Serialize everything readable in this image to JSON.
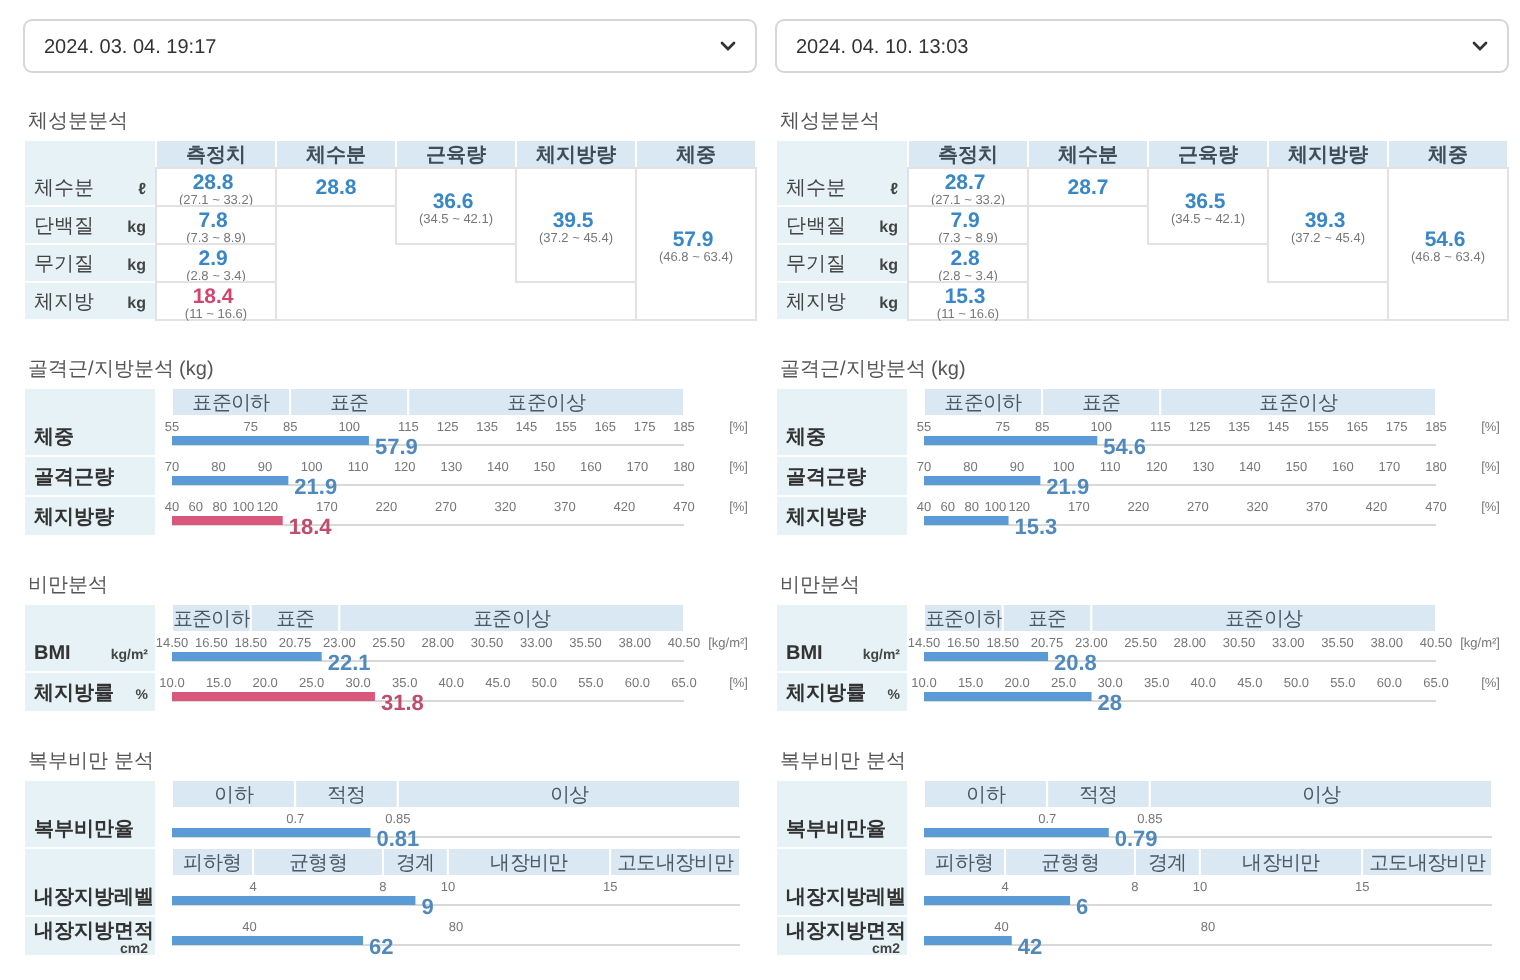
{
  "chart_data": [
    {
      "type": "other",
      "title": "2024. 03. 04. 19:17"
    },
    {
      "type": "other",
      "title": "체성분분석",
      "categories": [
        "측정치",
        "체수분",
        "근육량",
        "체지방량",
        "체중"
      ],
      "y_categories": [
        "체수분",
        "단백질",
        "무기질",
        "체지방"
      ],
      "y2_categories": [
        "ℓ",
        "kg",
        "kg",
        "kg"
      ],
      "cell_labels": [
        [
          "28.8\n(27.1 ~ 33.2)",
          "28.8",
          null,
          null,
          null
        ],
        [
          "7.8\n(7.3 ~ 8.9)",
          null,
          "36.6\n(34.5 ~ 42.1)",
          null,
          null
        ],
        [
          "2.9\n(2.8 ~ 3.4)",
          null,
          null,
          "39.5\n(37.2 ~ 45.4)",
          null
        ],
        [
          "18.4\n(11 ~ 16.6)",
          null,
          null,
          null,
          "57.9\n(46.8 ~ 63.4)"
        ]
      ]
    },
    {
      "type": "bar",
      "orientation": "horizontal",
      "title": "골격근/지방분석 (kg)",
      "categories": [
        "체중"
      ],
      "values": [
        105
      ],
      "annotations": [
        {
          "text": "57.9",
          "x": 105
        }
      ],
      "color": "#5b9bd5",
      "xlim": [
        55,
        185
      ],
      "xticks": [
        55,
        75,
        85,
        100,
        115,
        125,
        135,
        145,
        155,
        165,
        175,
        185
      ],
      "xlabel": "[%]",
      "bands": [
        {
          "axis": "x",
          "from": 55,
          "to": 85,
          "label": "표준이하"
        },
        {
          "axis": "x",
          "from": 85,
          "to": 115,
          "label": "표준"
        },
        {
          "axis": "x",
          "from": 115,
          "to": 185,
          "label": "표준이상"
        }
      ]
    },
    {
      "type": "bar",
      "orientation": "horizontal",
      "categories": [
        "골격근량"
      ],
      "values": [
        95
      ],
      "annotations": [
        {
          "text": "21.9",
          "x": 95
        }
      ],
      "color": "#5b9bd5",
      "xlim": [
        70,
        180
      ],
      "xticks": [
        70,
        80,
        90,
        100,
        110,
        120,
        130,
        140,
        150,
        160,
        170,
        180
      ],
      "xlabel": "[%]"
    },
    {
      "type": "bar",
      "orientation": "horizontal",
      "categories": [
        "체지방량"
      ],
      "values": [
        133
      ],
      "annotations": [
        {
          "text": "18.4",
          "x": 133
        }
      ],
      "color": "#d9577a",
      "xlim": [
        40,
        470
      ],
      "xticks": [
        40,
        60,
        80,
        100,
        120,
        170,
        220,
        270,
        320,
        370,
        420,
        470
      ],
      "xlabel": "[%]"
    },
    {
      "type": "bar",
      "orientation": "horizontal",
      "title": "비만분석",
      "categories": [
        "BMI"
      ],
      "ylabel": "kg/m²",
      "values": [
        22.1
      ],
      "data_labels": true,
      "color": "#5b9bd5",
      "xlim": [
        14.5,
        40.5
      ],
      "xticks": [
        {
          "value": 14.5,
          "label": "14.50"
        },
        {
          "value": 16.5,
          "label": "16.50"
        },
        {
          "value": 18.5,
          "label": "18.50"
        },
        {
          "value": 20.75,
          "label": "20.75"
        },
        {
          "value": 23,
          "label": "23.00"
        },
        {
          "value": 25.5,
          "label": "25.50"
        },
        {
          "value": 28,
          "label": "28.00"
        },
        {
          "value": 30.5,
          "label": "30.50"
        },
        {
          "value": 33,
          "label": "33.00"
        },
        {
          "value": 35.5,
          "label": "35.50"
        },
        {
          "value": 38,
          "label": "38.00"
        },
        {
          "value": 40.5,
          "label": "40.50"
        }
      ],
      "xlabel": "[kg/m²]",
      "bands": [
        {
          "axis": "x",
          "from": 14.5,
          "to": 18.5,
          "label": "표준이하"
        },
        {
          "axis": "x",
          "from": 18.5,
          "to": 23,
          "label": "표준"
        },
        {
          "axis": "x",
          "from": 23,
          "to": 40.5,
          "label": "표준이상"
        }
      ]
    },
    {
      "type": "bar",
      "orientation": "horizontal",
      "categories": [
        "체지방률"
      ],
      "ylabel": "%",
      "values": [
        31.8
      ],
      "data_labels": true,
      "color": "#d9577a",
      "xlim": [
        10,
        65
      ],
      "xticks": [
        {
          "value": 10,
          "label": "10.0"
        },
        {
          "value": 15,
          "label": "15.0"
        },
        {
          "value": 20,
          "label": "20.0"
        },
        {
          "value": 25,
          "label": "25.0"
        },
        {
          "value": 30,
          "label": "30.0"
        },
        {
          "value": 35,
          "label": "35.0"
        },
        {
          "value": 40,
          "label": "40.0"
        },
        {
          "value": 45,
          "label": "45.0"
        },
        {
          "value": 50,
          "label": "50.0"
        },
        {
          "value": 55,
          "label": "55.0"
        },
        {
          "value": 60,
          "label": "60.0"
        },
        {
          "value": 65,
          "label": "65.0"
        }
      ],
      "xlabel": "[%]"
    },
    {
      "type": "bar",
      "orientation": "horizontal",
      "title": "복부비만 분석",
      "categories": [
        "복부비만율"
      ],
      "values": [
        0.81
      ],
      "data_labels": true,
      "color": "#5b9bd5",
      "xlim": [
        0.52,
        1.35
      ],
      "xticks": [
        0.7,
        0.85
      ],
      "bands": [
        {
          "axis": "x",
          "from": 0.52,
          "to": 0.7,
          "label": "이하"
        },
        {
          "axis": "x",
          "from": 0.7,
          "to": 0.85,
          "label": "적정"
        },
        {
          "axis": "x",
          "from": 0.85,
          "to": 1.35,
          "label": "이상"
        }
      ]
    },
    {
      "type": "bar",
      "orientation": "horizontal",
      "categories": [
        "내장지방레벨"
      ],
      "values": [
        9
      ],
      "data_labels": true,
      "color": "#5b9bd5",
      "xlim": [
        1.5,
        19
      ],
      "xticks": [
        4,
        8,
        10,
        15
      ],
      "bands": [
        {
          "axis": "x",
          "from": 1.5,
          "to": 4,
          "label": "피하형"
        },
        {
          "axis": "x",
          "from": 4,
          "to": 8,
          "label": "균형형"
        },
        {
          "axis": "x",
          "from": 8,
          "to": 10,
          "label": "경계"
        },
        {
          "axis": "x",
          "from": 10,
          "to": 15,
          "label": "내장비만"
        },
        {
          "axis": "x",
          "from": 15,
          "to": 19,
          "label": "고도내장비만"
        }
      ]
    },
    {
      "type": "bar",
      "orientation": "horizontal",
      "categories": [
        "내장지방면적"
      ],
      "ylabel": "cm2",
      "values": [
        62
      ],
      "data_labels": true,
      "color": "#5b9bd5",
      "xlim": [
        25,
        135
      ],
      "xticks": [
        40,
        80
      ]
    },
    {
      "type": "other",
      "title": "2024. 04. 10. 13:03"
    },
    {
      "type": "other",
      "title": "체성분분석",
      "categories": [
        "측정치",
        "체수분",
        "근육량",
        "체지방량",
        "체중"
      ],
      "y_categories": [
        "체수분",
        "단백질",
        "무기질",
        "체지방"
      ],
      "y2_categories": [
        "ℓ",
        "kg",
        "kg",
        "kg"
      ],
      "cell_labels": [
        [
          "28.7\n(27.1 ~ 33.2)",
          "28.7",
          null,
          null,
          null
        ],
        [
          "7.9\n(7.3 ~ 8.9)",
          null,
          "36.5\n(34.5 ~ 42.1)",
          null,
          null
        ],
        [
          "2.8\n(2.8 ~ 3.4)",
          null,
          null,
          "39.3\n(37.2 ~ 45.4)",
          null
        ],
        [
          "15.3\n(11 ~ 16.6)",
          null,
          null,
          null,
          "54.6\n(46.8 ~ 63.4)"
        ]
      ]
    },
    {
      "type": "bar",
      "orientation": "horizontal",
      "title": "골격근/지방분석 (kg)",
      "categories": [
        "체중"
      ],
      "values": [
        99
      ],
      "annotations": [
        {
          "text": "54.6",
          "x": 99
        }
      ],
      "color": "#5b9bd5",
      "xlim": [
        55,
        185
      ],
      "xticks": [
        55,
        75,
        85,
        100,
        115,
        125,
        135,
        145,
        155,
        165,
        175,
        185
      ],
      "xlabel": "[%]",
      "bands": [
        {
          "axis": "x",
          "from": 55,
          "to": 85,
          "label": "표준이하"
        },
        {
          "axis": "x",
          "from": 85,
          "to": 115,
          "label": "표준"
        },
        {
          "axis": "x",
          "from": 115,
          "to": 185,
          "label": "표준이상"
        }
      ]
    },
    {
      "type": "bar",
      "orientation": "horizontal",
      "categories": [
        "골격근량"
      ],
      "values": [
        95
      ],
      "annotations": [
        {
          "text": "21.9",
          "x": 95
        }
      ],
      "color": "#5b9bd5",
      "xlim": [
        70,
        180
      ],
      "xticks": [
        70,
        80,
        90,
        100,
        110,
        120,
        130,
        140,
        150,
        160,
        170,
        180
      ],
      "xlabel": "[%]"
    },
    {
      "type": "bar",
      "orientation": "horizontal",
      "categories": [
        "체지방량"
      ],
      "values": [
        111
      ],
      "annotations": [
        {
          "text": "15.3",
          "x": 111
        }
      ],
      "color": "#5b9bd5",
      "xlim": [
        40,
        470
      ],
      "xticks": [
        40,
        60,
        80,
        100,
        120,
        170,
        220,
        270,
        320,
        370,
        420,
        470
      ],
      "xlabel": "[%]"
    },
    {
      "type": "bar",
      "orientation": "horizontal",
      "title": "비만분석",
      "categories": [
        "BMI"
      ],
      "ylabel": "kg/m²",
      "values": [
        20.8
      ],
      "data_labels": true,
      "color": "#5b9bd5",
      "xlim": [
        14.5,
        40.5
      ],
      "xticks": [
        {
          "value": 14.5,
          "label": "14.50"
        },
        {
          "value": 16.5,
          "label": "16.50"
        },
        {
          "value": 18.5,
          "label": "18.50"
        },
        {
          "value": 20.75,
          "label": "20.75"
        },
        {
          "value": 23,
          "label": "23.00"
        },
        {
          "value": 25.5,
          "label": "25.50"
        },
        {
          "value": 28,
          "label": "28.00"
        },
        {
          "value": 30.5,
          "label": "30.50"
        },
        {
          "value": 33,
          "label": "33.00"
        },
        {
          "value": 35.5,
          "label": "35.50"
        },
        {
          "value": 38,
          "label": "38.00"
        },
        {
          "value": 40.5,
          "label": "40.50"
        }
      ],
      "xlabel": "[kg/m²]",
      "bands": [
        {
          "axis": "x",
          "from": 14.5,
          "to": 18.5,
          "label": "표준이하"
        },
        {
          "axis": "x",
          "from": 18.5,
          "to": 23,
          "label": "표준"
        },
        {
          "axis": "x",
          "from": 23,
          "to": 40.5,
          "label": "표준이상"
        }
      ]
    },
    {
      "type": "bar",
      "orientation": "horizontal",
      "categories": [
        "체지방률"
      ],
      "ylabel": "%",
      "values": [
        28
      ],
      "data_labels": true,
      "color": "#5b9bd5",
      "xlim": [
        10,
        65
      ],
      "xticks": [
        {
          "value": 10,
          "label": "10.0"
        },
        {
          "value": 15,
          "label": "15.0"
        },
        {
          "value": 20,
          "label": "20.0"
        },
        {
          "value": 25,
          "label": "25.0"
        },
        {
          "value": 30,
          "label": "30.0"
        },
        {
          "value": 35,
          "label": "35.0"
        },
        {
          "value": 40,
          "label": "40.0"
        },
        {
          "value": 45,
          "label": "45.0"
        },
        {
          "value": 50,
          "label": "50.0"
        },
        {
          "value": 55,
          "label": "55.0"
        },
        {
          "value": 60,
          "label": "60.0"
        },
        {
          "value": 65,
          "label": "65.0"
        }
      ],
      "xlabel": "[%]"
    },
    {
      "type": "bar",
      "orientation": "horizontal",
      "title": "복부비만 분석",
      "categories": [
        "복부비만율"
      ],
      "values": [
        0.79
      ],
      "data_labels": true,
      "color": "#5b9bd5",
      "xlim": [
        0.52,
        1.35
      ],
      "xticks": [
        0.7,
        0.85
      ],
      "bands": [
        {
          "axis": "x",
          "from": 0.52,
          "to": 0.7,
          "label": "이하"
        },
        {
          "axis": "x",
          "from": 0.7,
          "to": 0.85,
          "label": "적정"
        },
        {
          "axis": "x",
          "from": 0.85,
          "to": 1.35,
          "label": "이상"
        }
      ]
    },
    {
      "type": "bar",
      "orientation": "horizontal",
      "categories": [
        "내장지방레벨"
      ],
      "values": [
        6
      ],
      "data_labels": true,
      "color": "#5b9bd5",
      "xlim": [
        1.5,
        19
      ],
      "xticks": [
        4,
        8,
        10,
        15
      ],
      "bands": [
        {
          "axis": "x",
          "from": 1.5,
          "to": 4,
          "label": "피하형"
        },
        {
          "axis": "x",
          "from": 4,
          "to": 8,
          "label": "균형형"
        },
        {
          "axis": "x",
          "from": 8,
          "to": 10,
          "label": "경계"
        },
        {
          "axis": "x",
          "from": 10,
          "to": 15,
          "label": "내장비만"
        },
        {
          "axis": "x",
          "from": 15,
          "to": 19,
          "label": "고도내장비만"
        }
      ]
    },
    {
      "type": "bar",
      "orientation": "horizontal",
      "categories": [
        "내장지방면적"
      ],
      "ylabel": "cm2",
      "values": [
        42
      ],
      "data_labels": true,
      "color": "#5b9bd5",
      "xlim": [
        25,
        135
      ],
      "xticks": [
        40,
        80
      ]
    }
  ]
}
